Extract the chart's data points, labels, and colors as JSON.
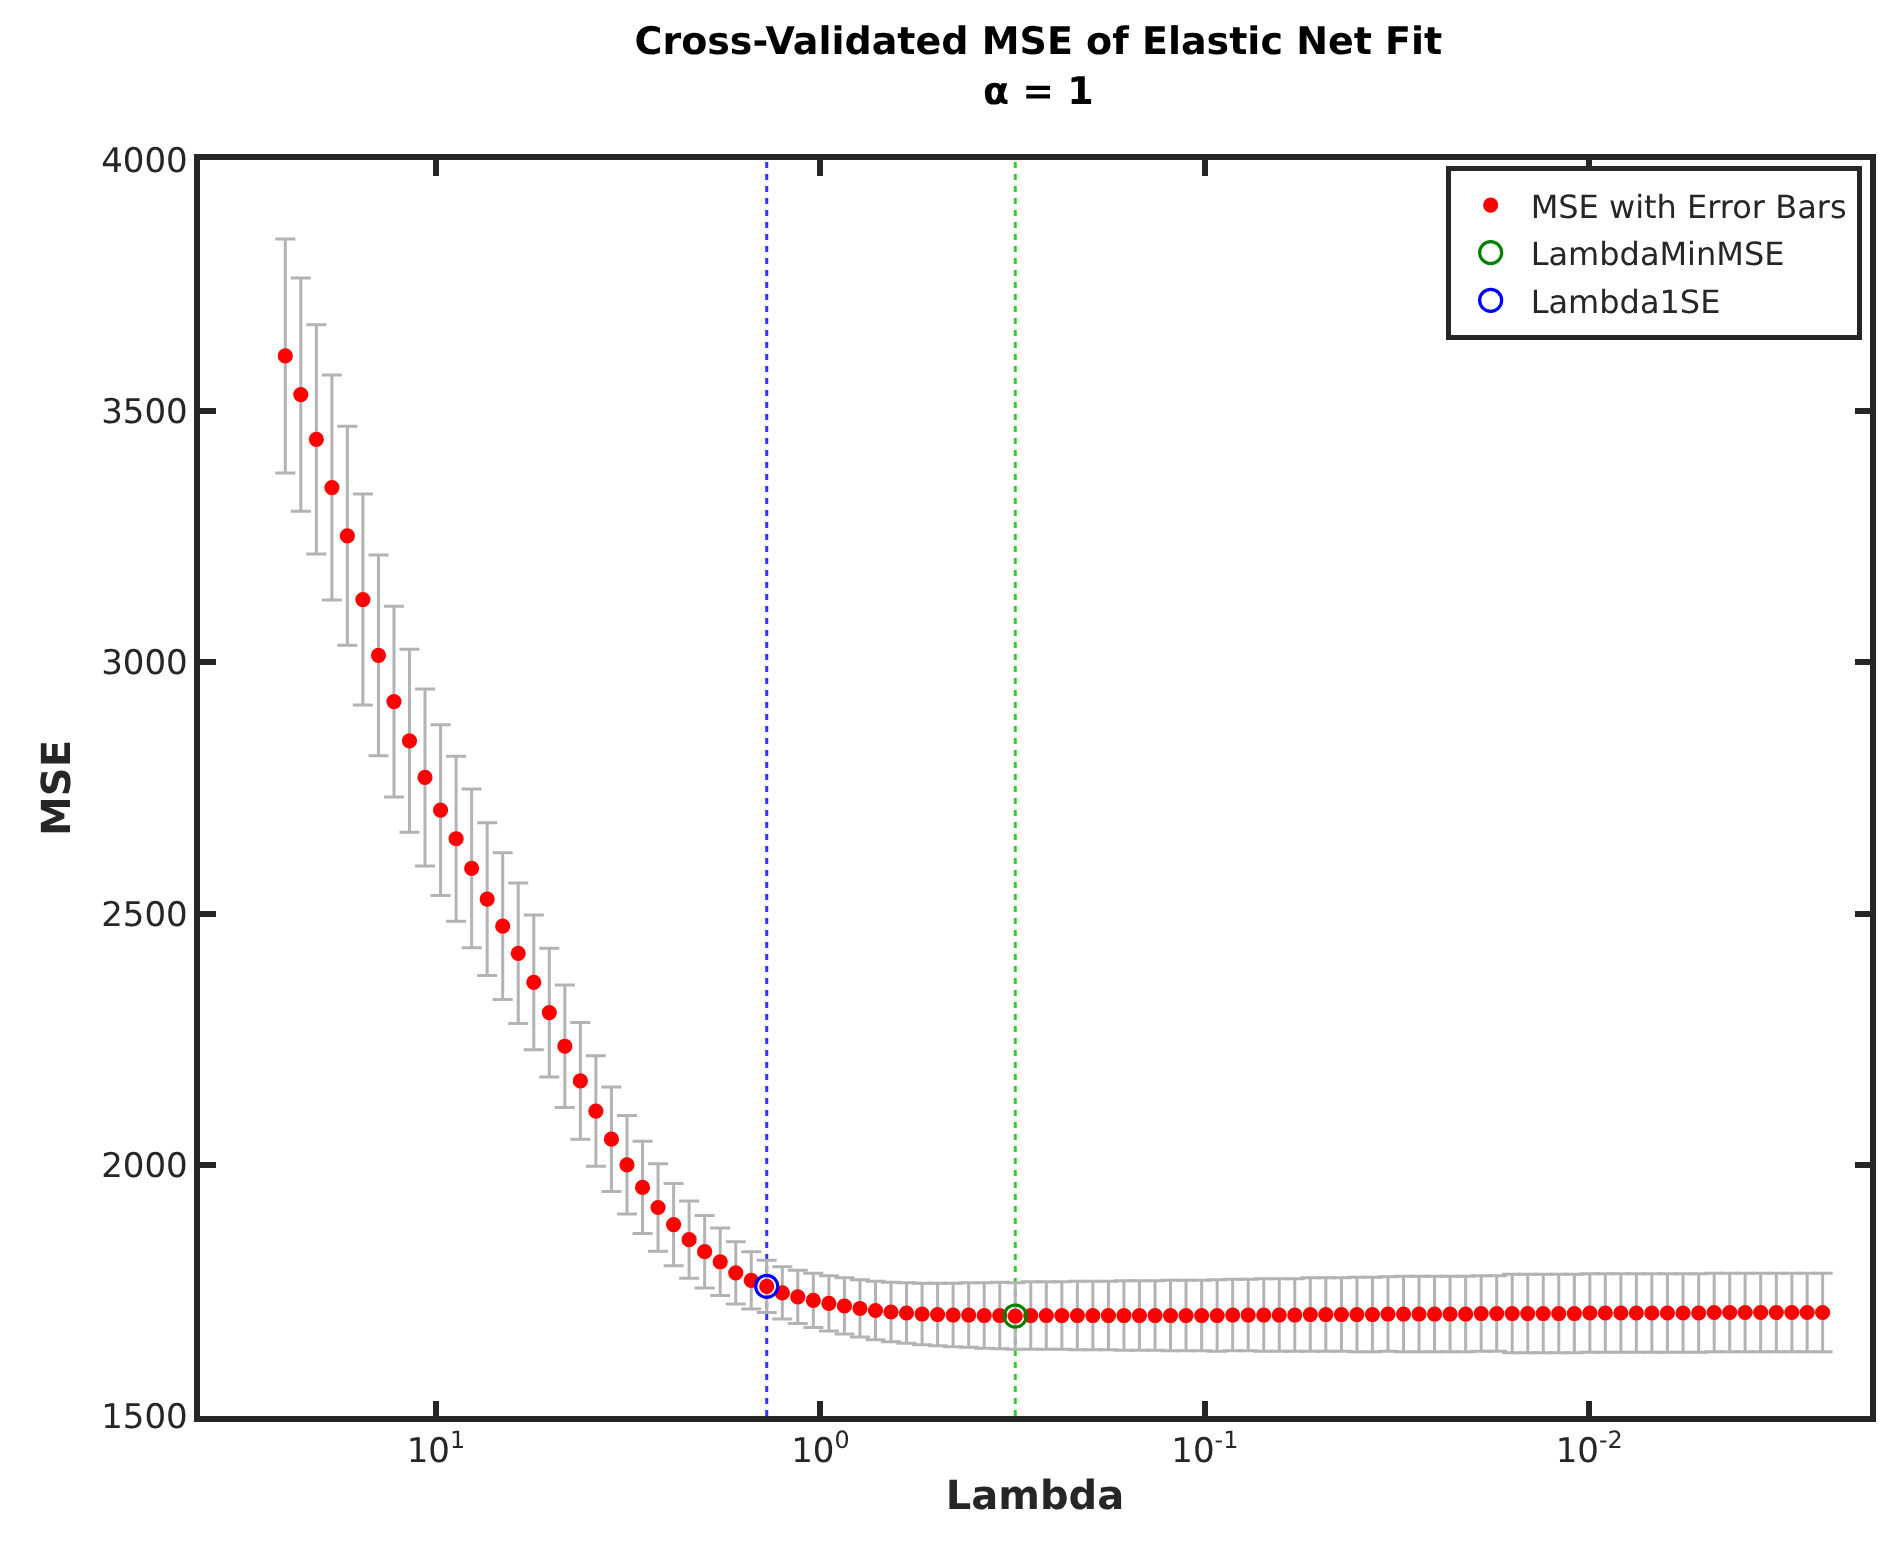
{
  "chart_data": {
    "type": "scatter",
    "title": "Cross-Validated MSE of Elastic Net Fit",
    "subtitle": "α = 1",
    "xlabel": "Lambda",
    "ylabel": "MSE",
    "log": "x",
    "legend": "top right",
    "xlim": [
      41.1,
      0.00186
    ],
    "xticks": [
      {
        "value": 10,
        "label": "10$^{1}$"
      },
      {
        "value": 1,
        "label": "10$^{0}$"
      },
      {
        "value": 0.1,
        "label": "10$^{-1}$"
      },
      {
        "value": 0.01,
        "label": "10$^{-2}$"
      }
    ],
    "ylim": [
      1500,
      4000
    ],
    "yticks": [
      1500,
      2000,
      2500,
      3000,
      3500,
      4000
    ],
    "series": [
      {
        "name": "MSE with Error Bars",
        "color": "#ff0000",
        "marker": "circle",
        "x": [
          24.66,
          22.47,
          20.47,
          18.65,
          17.0,
          15.49,
          14.11,
          12.86,
          11.72,
          10.68,
          9.727,
          8.863,
          8.076,
          7.358,
          6.705,
          6.109,
          5.566,
          5.072,
          4.621,
          4.211,
          3.837,
          3.496,
          3.185,
          2.902,
          2.644,
          2.409,
          2.195,
          2.0,
          1.822,
          1.66,
          1.513,
          1.379,
          1.256,
          1.145,
          1.043,
          0.9502,
          0.8658,
          0.7889,
          0.7188,
          0.655,
          0.5968,
          0.5438,
          0.4955,
          0.4515,
          0.4114,
          0.3748,
          0.3415,
          0.3112,
          0.2836,
          0.2584,
          0.2354,
          0.2145,
          0.1955,
          0.1781,
          0.1623,
          0.1479,
          0.1347,
          0.1228,
          0.1119,
          0.1019,
          0.09287,
          0.08462,
          0.0771,
          0.07025,
          0.06401,
          0.05833,
          0.05315,
          0.04843,
          0.04412,
          0.0402,
          0.03663,
          0.03338,
          0.03041,
          0.02771,
          0.02525,
          0.02301,
          0.02096,
          0.0191,
          0.0174,
          0.01586,
          0.01445,
          0.01317,
          0.012,
          0.01093,
          0.00996,
          0.00908,
          0.00827,
          0.00754,
          0.00687,
          0.00626,
          0.0057,
          0.00519,
          0.00473,
          0.00431,
          0.00393,
          0.00358,
          0.00326,
          0.00297,
          0.00271,
          0.00247
        ],
        "values": [
          3610,
          3533,
          3444,
          3348,
          3252,
          3125,
          3014,
          2922,
          2844,
          2771,
          2706,
          2649,
          2590,
          2529,
          2475,
          2421,
          2363,
          2303,
          2236,
          2167,
          2107,
          2051,
          2000,
          1955,
          1915,
          1881,
          1851,
          1827,
          1807,
          1785,
          1770,
          1758,
          1745,
          1737,
          1730,
          1724,
          1719,
          1714,
          1710,
          1707,
          1705,
          1703,
          1702,
          1701,
          1701,
          1700,
          1700,
          1699,
          1700,
          1700,
          1700,
          1700,
          1700,
          1700,
          1700,
          1700,
          1700,
          1700,
          1700,
          1700,
          1700,
          1701,
          1701,
          1701,
          1701,
          1701,
          1702,
          1702,
          1702,
          1702,
          1702,
          1703,
          1703,
          1703,
          1703,
          1703,
          1703,
          1704,
          1704,
          1704,
          1704,
          1704,
          1704,
          1704,
          1705,
          1705,
          1705,
          1705,
          1705,
          1705,
          1705,
          1705,
          1706,
          1706,
          1706,
          1706,
          1706,
          1706,
          1706,
          1706
        ],
        "errors": [
          233,
          232,
          228,
          224,
          218,
          210,
          200,
          190,
          182,
          176,
          170,
          164,
          158,
          152,
          146,
          140,
          134,
          128,
          122,
          116,
          110,
          104,
          98,
          92,
          87,
          82,
          77,
          72,
          67,
          62,
          57,
          52,
          52,
          53,
          54,
          55,
          56,
          57,
          58,
          59,
          60,
          61,
          62,
          63,
          64,
          65,
          66,
          66,
          67,
          67,
          67,
          68,
          68,
          68,
          69,
          69,
          69,
          70,
          70,
          70,
          71,
          71,
          71,
          72,
          72,
          72,
          73,
          73,
          73,
          74,
          74,
          74,
          75,
          75,
          75,
          75,
          75,
          75,
          75,
          78,
          78,
          78,
          78,
          78,
          78,
          78,
          78,
          78,
          78,
          78,
          78,
          78,
          78,
          78,
          78,
          78,
          78,
          78,
          78,
          78
        ]
      },
      {
        "name": "LambdaMinMSE",
        "color": "#008000",
        "marker": "circle-open",
        "x": [
          0.3112
        ],
        "values": [
          1699
        ]
      },
      {
        "name": "Lambda1SE",
        "color": "#0000ff",
        "marker": "circle-open",
        "x": [
          1.379
        ],
        "values": [
          1758
        ]
      }
    ],
    "ref_lines": [
      {
        "axis": "x",
        "value": 0.3112,
        "color": "#33cc33",
        "line_style": "dotted"
      },
      {
        "axis": "x",
        "value": 1.379,
        "color": "#3333ff",
        "line_style": "dotted"
      }
    ]
  }
}
